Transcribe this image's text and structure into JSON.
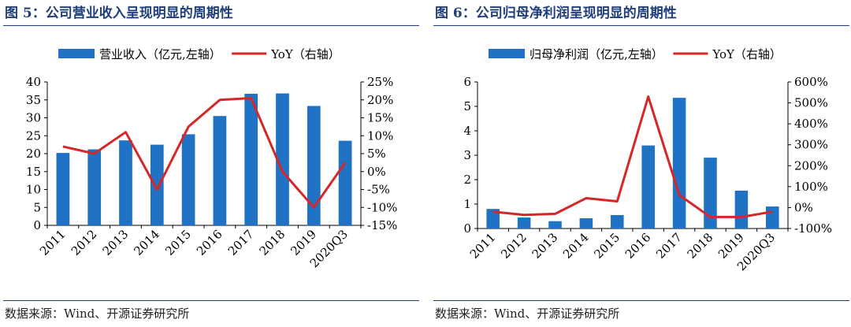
{
  "charts": [
    {
      "title": "图 5：公司营业收入呈现明显的周期性",
      "source": "数据来源：Wind、开源证券研究所",
      "chart_data": {
        "type": "bar",
        "categories": [
          "2011",
          "2012",
          "2013",
          "2014",
          "2015",
          "2016",
          "2017",
          "2018",
          "2019",
          "2020Q3"
        ],
        "series": [
          {
            "name": "营业收入（亿元,左轴）",
            "type": "bar",
            "axis": "left",
            "values": [
              20.2,
              21.2,
              23.7,
              22.5,
              25.4,
              30.5,
              36.7,
              36.8,
              33.3,
              23.6
            ]
          },
          {
            "name": "YoY（右轴）",
            "type": "line",
            "axis": "right",
            "values": [
              7,
              5,
              11,
              -5,
              12.5,
              20,
              20.5,
              0,
              -10,
              2.5
            ]
          }
        ],
        "ylim": [
          0,
          40
        ],
        "yticks": [
          0,
          5,
          10,
          15,
          20,
          25,
          30,
          35,
          40
        ],
        "y2lim": [
          -15,
          25
        ],
        "y2ticks": [
          -15,
          -10,
          -5,
          0,
          5,
          10,
          15,
          20,
          25
        ],
        "y2unit": "%",
        "legend": "top"
      }
    },
    {
      "title": "图 6：公司归母净利润呈现明显的周期性",
      "source": "数据来源：Wind、开源证券研究所",
      "chart_data": {
        "type": "bar",
        "categories": [
          "2011",
          "2012",
          "2013",
          "2014",
          "2015",
          "2016",
          "2017",
          "2018",
          "2019",
          "2020Q3"
        ],
        "series": [
          {
            "name": "归母净利润（亿元,左轴）",
            "type": "bar",
            "axis": "left",
            "values": [
              0.8,
              0.45,
              0.3,
              0.42,
              0.55,
              3.4,
              5.35,
              2.9,
              1.55,
              0.9
            ]
          },
          {
            "name": "YoY（右轴）",
            "type": "line",
            "axis": "right",
            "values": [
              -20,
              -35,
              -30,
              45,
              30,
              530,
              60,
              -45,
              -45,
              -20
            ]
          }
        ],
        "ylim": [
          0,
          6
        ],
        "yticks": [
          0,
          1,
          2,
          3,
          4,
          5,
          6
        ],
        "y2lim": [
          -100,
          600
        ],
        "y2ticks": [
          -100,
          0,
          100,
          200,
          300,
          400,
          500,
          600
        ],
        "y2unit": "%",
        "legend": "top"
      }
    }
  ],
  "colors": {
    "bar": "#1f72c4",
    "line": "#d62728",
    "rule": "#1f3f7a"
  }
}
